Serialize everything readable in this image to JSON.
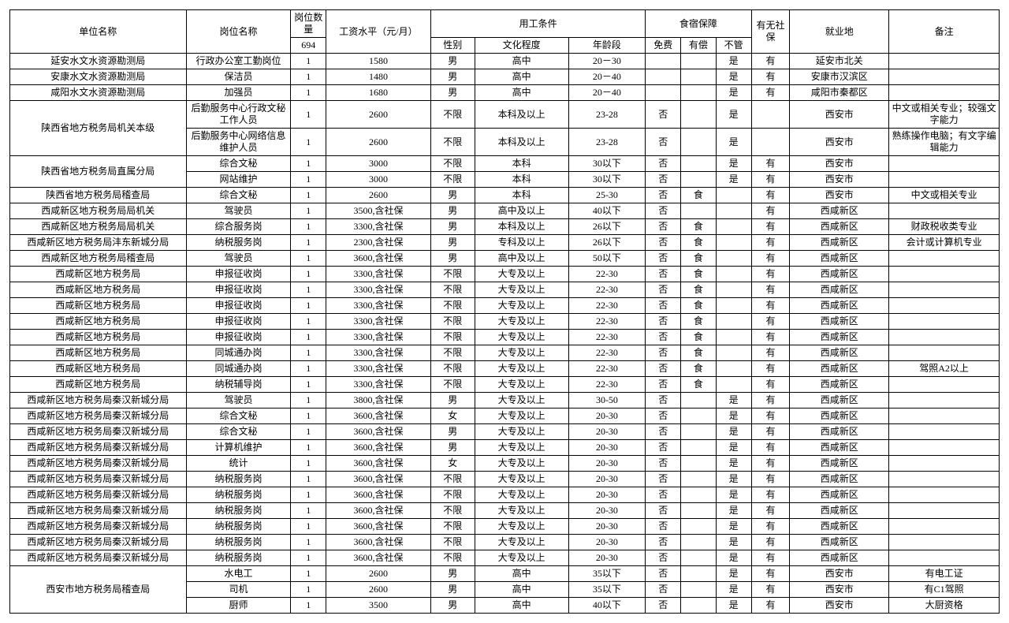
{
  "style": {
    "font_family": "SimSun",
    "base_font_size_pt": 9,
    "border_color": "#000000",
    "background_color": "#ffffff",
    "text_color": "#000000"
  },
  "header": {
    "unit": "单位名称",
    "post": "岗位名称",
    "qty_label": "岗位数量",
    "qty_total": "694",
    "salary": "工资水平（元/月）",
    "conditions": "用工条件",
    "gender": "性别",
    "education": "文化程度",
    "age": "年龄段",
    "accommodation": "食宿保障",
    "free": "免费",
    "paid": "有偿",
    "none": "不管",
    "social": "有无社保",
    "location": "就业地",
    "note": "备注"
  },
  "groups": [
    {
      "unit": "延安水文水资源勘测局",
      "rows": [
        {
          "post": "行政办公室工勤岗位",
          "qty": "1",
          "salary": "1580",
          "gender": "男",
          "edu": "高中",
          "age": "20－30",
          "free": "",
          "paid": "",
          "none": "是",
          "sb": "有",
          "loc": "延安市北关",
          "note": ""
        }
      ]
    },
    {
      "unit": "安康水文水资源勘测局",
      "rows": [
        {
          "post": "保洁员",
          "qty": "1",
          "salary": "1480",
          "gender": "男",
          "edu": "高中",
          "age": "20－40",
          "free": "",
          "paid": "",
          "none": "是",
          "sb": "有",
          "loc": "安康市汉滨区",
          "note": ""
        }
      ]
    },
    {
      "unit": "咸阳水文水资源勘测局",
      "rows": [
        {
          "post": "加强员",
          "qty": "1",
          "salary": "1680",
          "gender": "男",
          "edu": "高中",
          "age": "20－40",
          "free": "",
          "paid": "",
          "none": "是",
          "sb": "有",
          "loc": "咸阳市秦都区",
          "note": ""
        }
      ]
    },
    {
      "unit": "陕西省地方税务局机关本级",
      "rows": [
        {
          "post": "后勤服务中心行政文秘工作人员",
          "qty": "1",
          "salary": "2600",
          "gender": "不限",
          "edu": "本科及以上",
          "age": "23-28",
          "free": "否",
          "paid": "",
          "none": "是",
          "sb": "",
          "loc": "西安市",
          "note": "中文或相关专业；较强文字能力"
        },
        {
          "post": "后勤服务中心网络信息维护人员",
          "qty": "1",
          "salary": "2600",
          "gender": "不限",
          "edu": "本科及以上",
          "age": "23-28",
          "free": "否",
          "paid": "",
          "none": "是",
          "sb": "",
          "loc": "西安市",
          "note": "熟练操作电脑；有文字编辑能力"
        }
      ]
    },
    {
      "unit": "陕西省地方税务局直属分局",
      "rows": [
        {
          "post": "综合文秘",
          "qty": "1",
          "salary": "3000",
          "gender": "不限",
          "edu": "本科",
          "age": "30以下",
          "free": "否",
          "paid": "",
          "none": "是",
          "sb": "有",
          "loc": "西安市",
          "note": ""
        },
        {
          "post": "网站维护",
          "qty": "1",
          "salary": "3000",
          "gender": "不限",
          "edu": "本科",
          "age": "30以下",
          "free": "否",
          "paid": "",
          "none": "是",
          "sb": "有",
          "loc": "西安市",
          "note": ""
        }
      ]
    },
    {
      "unit": "陕西省地方税务局稽查局",
      "rows": [
        {
          "post": "综合文秘",
          "qty": "1",
          "salary": "2600",
          "gender": "男",
          "edu": "本科",
          "age": "25-30",
          "free": "否",
          "paid": "食",
          "none": "",
          "sb": "有",
          "loc": "西安市",
          "note": "中文或相关专业"
        }
      ]
    },
    {
      "unit": "西咸新区地方税务局局机关",
      "rows": [
        {
          "post": "驾驶员",
          "qty": "1",
          "salary": "3500,含社保",
          "gender": "男",
          "edu": "高中及以上",
          "age": "40以下",
          "free": "否",
          "paid": "",
          "none": "",
          "sb": "有",
          "loc": "西咸新区",
          "note": ""
        }
      ]
    },
    {
      "unit": "西咸新区地方税务局局机关",
      "rows": [
        {
          "post": "综合服务岗",
          "qty": "1",
          "salary": "3300,含社保",
          "gender": "男",
          "edu": "本科及以上",
          "age": "26以下",
          "free": "否",
          "paid": "食",
          "none": "",
          "sb": "有",
          "loc": "西咸新区",
          "note": "财政税收类专业"
        }
      ]
    },
    {
      "unit": "西咸新区地方税务局沣东新城分局",
      "rows": [
        {
          "post": "纳税服务岗",
          "qty": "1",
          "salary": "2300,含社保",
          "gender": "男",
          "edu": "专科及以上",
          "age": "26以下",
          "free": "否",
          "paid": "食",
          "none": "",
          "sb": "有",
          "loc": "西咸新区",
          "note": "会计或计算机专业"
        }
      ]
    },
    {
      "unit": "西咸新区地方税务局稽查局",
      "rows": [
        {
          "post": "驾驶员",
          "qty": "1",
          "salary": "3600,含社保",
          "gender": "男",
          "edu": "高中及以上",
          "age": "50以下",
          "free": "否",
          "paid": "食",
          "none": "",
          "sb": "有",
          "loc": "西咸新区",
          "note": ""
        }
      ]
    },
    {
      "unit": "西咸新区地方税务局",
      "rows": [
        {
          "post": "申报征收岗",
          "qty": "1",
          "salary": "3300,含社保",
          "gender": "不限",
          "edu": "大专及以上",
          "age": "22-30",
          "free": "否",
          "paid": "食",
          "none": "",
          "sb": "有",
          "loc": "西咸新区",
          "note": ""
        }
      ]
    },
    {
      "unit": "西咸新区地方税务局",
      "rows": [
        {
          "post": "申报征收岗",
          "qty": "1",
          "salary": "3300,含社保",
          "gender": "不限",
          "edu": "大专及以上",
          "age": "22-30",
          "free": "否",
          "paid": "食",
          "none": "",
          "sb": "有",
          "loc": "西咸新区",
          "note": ""
        }
      ]
    },
    {
      "unit": "西咸新区地方税务局",
      "rows": [
        {
          "post": "申报征收岗",
          "qty": "1",
          "salary": "3300,含社保",
          "gender": "不限",
          "edu": "大专及以上",
          "age": "22-30",
          "free": "否",
          "paid": "食",
          "none": "",
          "sb": "有",
          "loc": "西咸新区",
          "note": ""
        }
      ]
    },
    {
      "unit": "西咸新区地方税务局",
      "rows": [
        {
          "post": "申报征收岗",
          "qty": "1",
          "salary": "3300,含社保",
          "gender": "不限",
          "edu": "大专及以上",
          "age": "22-30",
          "free": "否",
          "paid": "食",
          "none": "",
          "sb": "有",
          "loc": "西咸新区",
          "note": ""
        }
      ]
    },
    {
      "unit": "西咸新区地方税务局",
      "rows": [
        {
          "post": "申报征收岗",
          "qty": "1",
          "salary": "3300,含社保",
          "gender": "不限",
          "edu": "大专及以上",
          "age": "22-30",
          "free": "否",
          "paid": "食",
          "none": "",
          "sb": "有",
          "loc": "西咸新区",
          "note": ""
        }
      ]
    },
    {
      "unit": "西咸新区地方税务局",
      "rows": [
        {
          "post": "同城通办岗",
          "qty": "1",
          "salary": "3300,含社保",
          "gender": "不限",
          "edu": "大专及以上",
          "age": "22-30",
          "free": "否",
          "paid": "食",
          "none": "",
          "sb": "有",
          "loc": "西咸新区",
          "note": ""
        }
      ]
    },
    {
      "unit": "西咸新区地方税务局",
      "rows": [
        {
          "post": "同城通办岗",
          "qty": "1",
          "salary": "3300,含社保",
          "gender": "不限",
          "edu": "大专及以上",
          "age": "22-30",
          "free": "否",
          "paid": "食",
          "none": "",
          "sb": "有",
          "loc": "西咸新区",
          "note": "驾照A2以上"
        }
      ]
    },
    {
      "unit": "西咸新区地方税务局",
      "rows": [
        {
          "post": "纳税辅导岗",
          "qty": "1",
          "salary": "3300,含社保",
          "gender": "不限",
          "edu": "大专及以上",
          "age": "22-30",
          "free": "否",
          "paid": "食",
          "none": "",
          "sb": "有",
          "loc": "西咸新区",
          "note": ""
        }
      ]
    },
    {
      "unit": "西咸新区地方税务局秦汉新城分局",
      "rows": [
        {
          "post": "驾驶员",
          "qty": "1",
          "salary": "3800,含社保",
          "gender": "男",
          "edu": "大专及以上",
          "age": "30-50",
          "free": "否",
          "paid": "",
          "none": "是",
          "sb": "有",
          "loc": "西咸新区",
          "note": ""
        }
      ]
    },
    {
      "unit": "西咸新区地方税务局秦汉新城分局",
      "rows": [
        {
          "post": "综合文秘",
          "qty": "1",
          "salary": "3600,含社保",
          "gender": "女",
          "edu": "大专及以上",
          "age": "20-30",
          "free": "否",
          "paid": "",
          "none": "是",
          "sb": "有",
          "loc": "西咸新区",
          "note": ""
        }
      ]
    },
    {
      "unit": "西咸新区地方税务局秦汉新城分局",
      "rows": [
        {
          "post": "综合文秘",
          "qty": "1",
          "salary": "3600,含社保",
          "gender": "男",
          "edu": "大专及以上",
          "age": "20-30",
          "free": "否",
          "paid": "",
          "none": "是",
          "sb": "有",
          "loc": "西咸新区",
          "note": ""
        }
      ]
    },
    {
      "unit": "西咸新区地方税务局秦汉新城分局",
      "rows": [
        {
          "post": "计算机维护",
          "qty": "1",
          "salary": "3600,含社保",
          "gender": "男",
          "edu": "大专及以上",
          "age": "20-30",
          "free": "否",
          "paid": "",
          "none": "是",
          "sb": "有",
          "loc": "西咸新区",
          "note": ""
        }
      ]
    },
    {
      "unit": "西咸新区地方税务局秦汉新城分局",
      "rows": [
        {
          "post": "统计",
          "qty": "1",
          "salary": "3600,含社保",
          "gender": "女",
          "edu": "大专及以上",
          "age": "20-30",
          "free": "否",
          "paid": "",
          "none": "是",
          "sb": "有",
          "loc": "西咸新区",
          "note": ""
        }
      ]
    },
    {
      "unit": "西咸新区地方税务局秦汉新城分局",
      "rows": [
        {
          "post": "纳税服务岗",
          "qty": "1",
          "salary": "3600,含社保",
          "gender": "不限",
          "edu": "大专及以上",
          "age": "20-30",
          "free": "否",
          "paid": "",
          "none": "是",
          "sb": "有",
          "loc": "西咸新区",
          "note": ""
        }
      ]
    },
    {
      "unit": "西咸新区地方税务局秦汉新城分局",
      "rows": [
        {
          "post": "纳税服务岗",
          "qty": "1",
          "salary": "3600,含社保",
          "gender": "不限",
          "edu": "大专及以上",
          "age": "20-30",
          "free": "否",
          "paid": "",
          "none": "是",
          "sb": "有",
          "loc": "西咸新区",
          "note": ""
        }
      ]
    },
    {
      "unit": "西咸新区地方税务局秦汉新城分局",
      "rows": [
        {
          "post": "纳税服务岗",
          "qty": "1",
          "salary": "3600,含社保",
          "gender": "不限",
          "edu": "大专及以上",
          "age": "20-30",
          "free": "否",
          "paid": "",
          "none": "是",
          "sb": "有",
          "loc": "西咸新区",
          "note": ""
        }
      ]
    },
    {
      "unit": "西咸新区地方税务局秦汉新城分局",
      "rows": [
        {
          "post": "纳税服务岗",
          "qty": "1",
          "salary": "3600,含社保",
          "gender": "不限",
          "edu": "大专及以上",
          "age": "20-30",
          "free": "否",
          "paid": "",
          "none": "是",
          "sb": "有",
          "loc": "西咸新区",
          "note": ""
        }
      ]
    },
    {
      "unit": "西咸新区地方税务局秦汉新城分局",
      "rows": [
        {
          "post": "纳税服务岗",
          "qty": "1",
          "salary": "3600,含社保",
          "gender": "不限",
          "edu": "大专及以上",
          "age": "20-30",
          "free": "否",
          "paid": "",
          "none": "是",
          "sb": "有",
          "loc": "西咸新区",
          "note": ""
        }
      ]
    },
    {
      "unit": "西咸新区地方税务局秦汉新城分局",
      "rows": [
        {
          "post": "纳税服务岗",
          "qty": "1",
          "salary": "3600,含社保",
          "gender": "不限",
          "edu": "大专及以上",
          "age": "20-30",
          "free": "否",
          "paid": "",
          "none": "是",
          "sb": "有",
          "loc": "西咸新区",
          "note": ""
        }
      ]
    },
    {
      "unit": "西安市地方税务局稽查局",
      "rows": [
        {
          "post": "水电工",
          "qty": "1",
          "salary": "2600",
          "gender": "男",
          "edu": "高中",
          "age": "35以下",
          "free": "否",
          "paid": "",
          "none": "是",
          "sb": "有",
          "loc": "西安市",
          "note": "有电工证"
        },
        {
          "post": "司机",
          "qty": "1",
          "salary": "2600",
          "gender": "男",
          "edu": "高中",
          "age": "35以下",
          "free": "否",
          "paid": "",
          "none": "是",
          "sb": "有",
          "loc": "西安市",
          "note": "有C1驾照"
        },
        {
          "post": "厨师",
          "qty": "1",
          "salary": "3500",
          "gender": "男",
          "edu": "高中",
          "age": "40以下",
          "free": "否",
          "paid": "",
          "none": "是",
          "sb": "有",
          "loc": "西安市",
          "note": "大厨资格"
        }
      ]
    }
  ]
}
